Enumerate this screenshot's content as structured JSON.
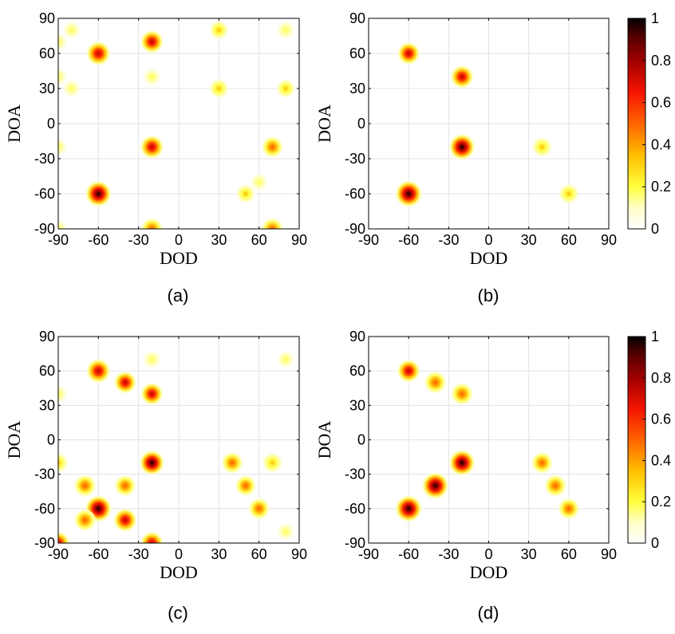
{
  "chart_data": [
    {
      "type": "heatmap",
      "caption": "(a)",
      "xlabel": "DOD",
      "ylabel": "DOA",
      "xlim": [
        -90,
        90
      ],
      "ylim": [
        -90,
        90
      ],
      "xticks": [
        "-90",
        "-60",
        "-30",
        "0",
        "30",
        "60",
        "90"
      ],
      "yticks": [
        "-90",
        "-60",
        "-30",
        "0",
        "30",
        "60",
        "90"
      ],
      "colorbar": false,
      "grid": true,
      "peaks": [
        {
          "dod": -60,
          "doa": 60,
          "value": 0.7
        },
        {
          "dod": -20,
          "doa": 70,
          "value": 0.6
        },
        {
          "dod": -20,
          "doa": -20,
          "value": 0.65
        },
        {
          "dod": -60,
          "doa": -60,
          "value": 0.85
        },
        {
          "dod": 70,
          "doa": -20,
          "value": 0.45
        },
        {
          "dod": -20,
          "doa": -90,
          "value": 0.5
        },
        {
          "dod": 70,
          "doa": -90,
          "value": 0.5
        },
        {
          "dod": 30,
          "doa": 80,
          "value": 0.25
        },
        {
          "dod": 80,
          "doa": 80,
          "value": 0.2
        },
        {
          "dod": -80,
          "doa": 80,
          "value": 0.15
        },
        {
          "dod": 30,
          "doa": 30,
          "value": 0.3
        },
        {
          "dod": 80,
          "doa": 30,
          "value": 0.25
        },
        {
          "dod": -20,
          "doa": 40,
          "value": 0.2
        },
        {
          "dod": -80,
          "doa": 30,
          "value": 0.15
        },
        {
          "dod": 50,
          "doa": -60,
          "value": 0.25
        },
        {
          "dod": 60,
          "doa": -50,
          "value": 0.15
        },
        {
          "dod": -90,
          "doa": 70,
          "value": 0.2
        },
        {
          "dod": -90,
          "doa": -20,
          "value": 0.15
        },
        {
          "dod": -90,
          "doa": -90,
          "value": 0.2
        },
        {
          "dod": -90,
          "doa": 40,
          "value": 0.15
        }
      ]
    },
    {
      "type": "heatmap",
      "caption": "(b)",
      "xlabel": "DOD",
      "ylabel": "DOA",
      "xlim": [
        -90,
        90
      ],
      "ylim": [
        -90,
        90
      ],
      "xticks": [
        "-90",
        "-60",
        "-30",
        "0",
        "30",
        "60",
        "90"
      ],
      "yticks": [
        "-90",
        "-60",
        "-30",
        "0",
        "30",
        "60",
        "90"
      ],
      "colorbar": true,
      "colorbar_ticks": [
        "0",
        "0.2",
        "0.4",
        "0.6",
        "0.8",
        "1"
      ],
      "grid": true,
      "peaks": [
        {
          "dod": -60,
          "doa": 60,
          "value": 0.55
        },
        {
          "dod": -20,
          "doa": 40,
          "value": 0.6
        },
        {
          "dod": -20,
          "doa": -20,
          "value": 0.85
        },
        {
          "dod": 40,
          "doa": -20,
          "value": 0.35
        },
        {
          "dod": -60,
          "doa": -60,
          "value": 0.9
        },
        {
          "dod": 60,
          "doa": -60,
          "value": 0.35
        }
      ]
    },
    {
      "type": "heatmap",
      "caption": "(c)",
      "xlabel": "DOD",
      "ylabel": "DOA",
      "xlim": [
        -90,
        90
      ],
      "ylim": [
        -90,
        90
      ],
      "xticks": [
        "-90",
        "-60",
        "-30",
        "0",
        "30",
        "60",
        "90"
      ],
      "yticks": [
        "-90",
        "-60",
        "-30",
        "0",
        "30",
        "60",
        "90"
      ],
      "colorbar": false,
      "grid": true,
      "peaks": [
        {
          "dod": -60,
          "doa": 60,
          "value": 0.7
        },
        {
          "dod": -40,
          "doa": 50,
          "value": 0.55
        },
        {
          "dod": -20,
          "doa": 40,
          "value": 0.55
        },
        {
          "dod": -20,
          "doa": -20,
          "value": 0.75
        },
        {
          "dod": 40,
          "doa": -20,
          "value": 0.45
        },
        {
          "dod": 70,
          "doa": -20,
          "value": 0.35
        },
        {
          "dod": -70,
          "doa": -40,
          "value": 0.5
        },
        {
          "dod": -40,
          "doa": -40,
          "value": 0.45
        },
        {
          "dod": 50,
          "doa": -40,
          "value": 0.4
        },
        {
          "dod": -60,
          "doa": -60,
          "value": 0.9
        },
        {
          "dod": 60,
          "doa": -60,
          "value": 0.45
        },
        {
          "dod": -70,
          "doa": -70,
          "value": 0.5
        },
        {
          "dod": -40,
          "doa": -70,
          "value": 0.65
        },
        {
          "dod": -90,
          "doa": -90,
          "value": 0.6
        },
        {
          "dod": -20,
          "doa": -90,
          "value": 0.6
        },
        {
          "dod": -20,
          "doa": 70,
          "value": 0.2
        },
        {
          "dod": -90,
          "doa": -20,
          "value": 0.35
        },
        {
          "dod": -90,
          "doa": 40,
          "value": 0.2
        },
        {
          "dod": 80,
          "doa": 70,
          "value": 0.15
        },
        {
          "dod": 80,
          "doa": -80,
          "value": 0.15
        }
      ]
    },
    {
      "type": "heatmap",
      "caption": "(d)",
      "xlabel": "DOD",
      "ylabel": "DOA",
      "xlim": [
        -90,
        90
      ],
      "ylim": [
        -90,
        90
      ],
      "xticks": [
        "-90",
        "-60",
        "-30",
        "0",
        "30",
        "60",
        "90"
      ],
      "yticks": [
        "-90",
        "-60",
        "-30",
        "0",
        "30",
        "60",
        "90"
      ],
      "colorbar": true,
      "colorbar_ticks": [
        "0",
        "0.2",
        "0.4",
        "0.6",
        "0.8",
        "1"
      ],
      "grid": true,
      "peaks": [
        {
          "dod": -60,
          "doa": 60,
          "value": 0.6
        },
        {
          "dod": -40,
          "doa": 50,
          "value": 0.5
        },
        {
          "dod": -20,
          "doa": 40,
          "value": 0.5
        },
        {
          "dod": -20,
          "doa": -20,
          "value": 0.85
        },
        {
          "dod": 40,
          "doa": -20,
          "value": 0.45
        },
        {
          "dod": -40,
          "doa": -40,
          "value": 0.9
        },
        {
          "dod": 50,
          "doa": -40,
          "value": 0.5
        },
        {
          "dod": -60,
          "doa": -60,
          "value": 0.9
        },
        {
          "dod": 60,
          "doa": -60,
          "value": 0.45
        }
      ]
    }
  ]
}
